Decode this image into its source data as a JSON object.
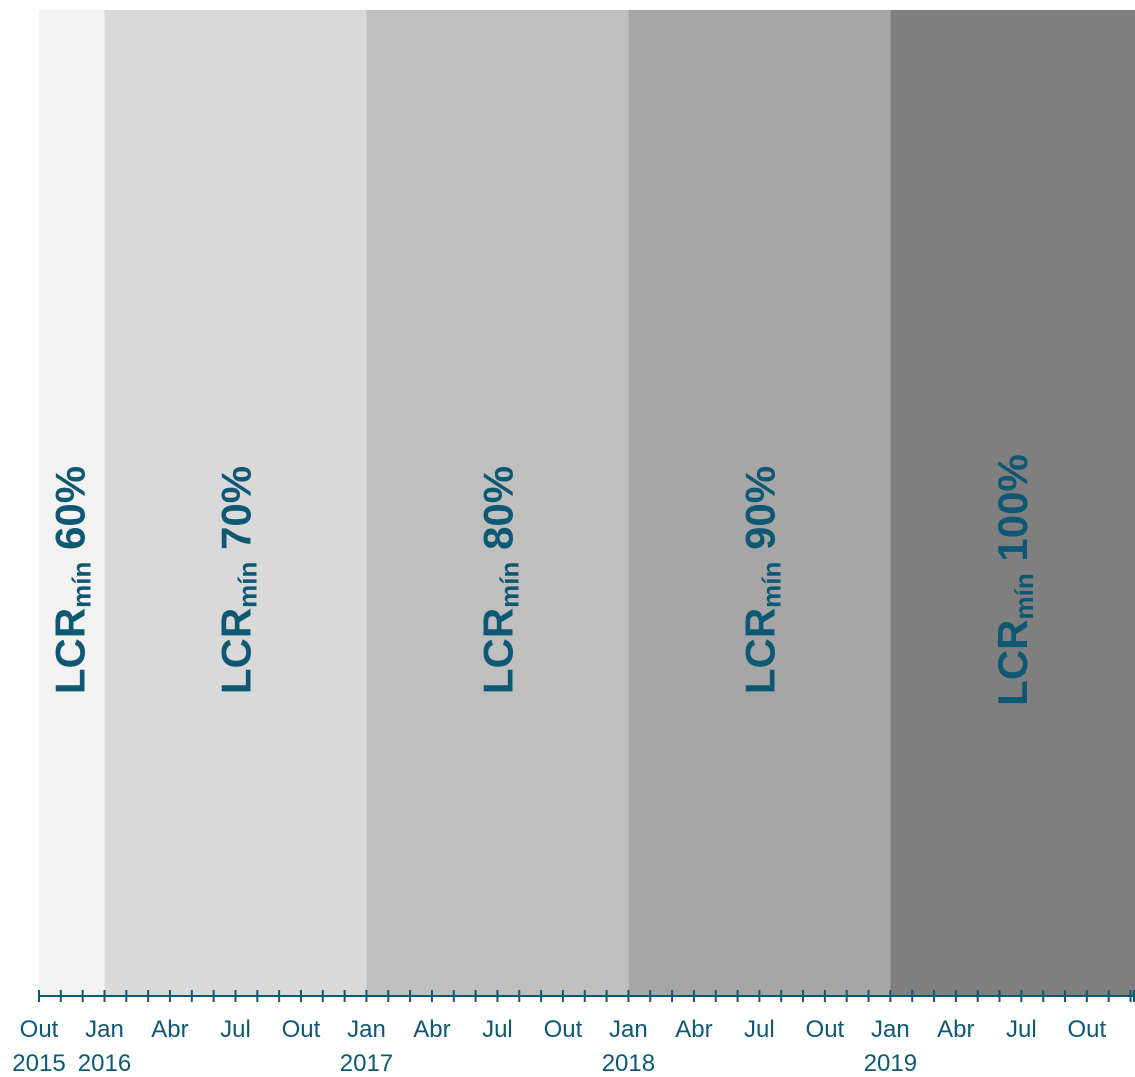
{
  "chart_data": {
    "type": "timeline",
    "x_range": [
      "2015-09",
      "2019-12"
    ],
    "bands": [
      {
        "start": "2015-10",
        "end": "2016-01",
        "label": "LCR",
        "subscript": "mín",
        "value": "60%",
        "color": "#f2f2f2"
      },
      {
        "start": "2016-01",
        "end": "2017-01",
        "label": "LCR",
        "subscript": "mín",
        "value": "70%",
        "color": "#d9d9d9"
      },
      {
        "start": "2017-01",
        "end": "2018-01",
        "label": "LCR",
        "subscript": "mín",
        "value": "80%",
        "color": "#bfbfbf"
      },
      {
        "start": "2018-01",
        "end": "2019-01",
        "label": "LCR",
        "subscript": "mín",
        "value": "90%",
        "color": "#a6a6a6"
      },
      {
        "start": "2019-01",
        "end": "2019-12",
        "label": "LCR",
        "subscript": "mín",
        "value": "100%",
        "color": "#7f7f7f"
      }
    ],
    "tick_labels": [
      {
        "date": "2015-10",
        "month": "Out",
        "year": "2015"
      },
      {
        "date": "2016-01",
        "month": "Jan",
        "year": "2016"
      },
      {
        "date": "2016-04",
        "month": "Abr",
        "year": ""
      },
      {
        "date": "2016-07",
        "month": "Jul",
        "year": ""
      },
      {
        "date": "2016-10",
        "month": "Out",
        "year": ""
      },
      {
        "date": "2017-01",
        "month": "Jan",
        "year": "2017"
      },
      {
        "date": "2017-04",
        "month": "Abr",
        "year": ""
      },
      {
        "date": "2017-07",
        "month": "Jul",
        "year": ""
      },
      {
        "date": "2017-10",
        "month": "Out",
        "year": ""
      },
      {
        "date": "2018-01",
        "month": "Jan",
        "year": "2018"
      },
      {
        "date": "2018-04",
        "month": "Abr",
        "year": ""
      },
      {
        "date": "2018-07",
        "month": "Jul",
        "year": ""
      },
      {
        "date": "2018-10",
        "month": "Out",
        "year": ""
      },
      {
        "date": "2019-01",
        "month": "Jan",
        "year": "2019"
      },
      {
        "date": "2019-04",
        "month": "Abr",
        "year": ""
      },
      {
        "date": "2019-07",
        "month": "Jul",
        "year": ""
      },
      {
        "date": "2019-10",
        "month": "Out",
        "year": ""
      }
    ],
    "colors": {
      "text": "#0e5873",
      "axis": "#0e5873"
    }
  }
}
